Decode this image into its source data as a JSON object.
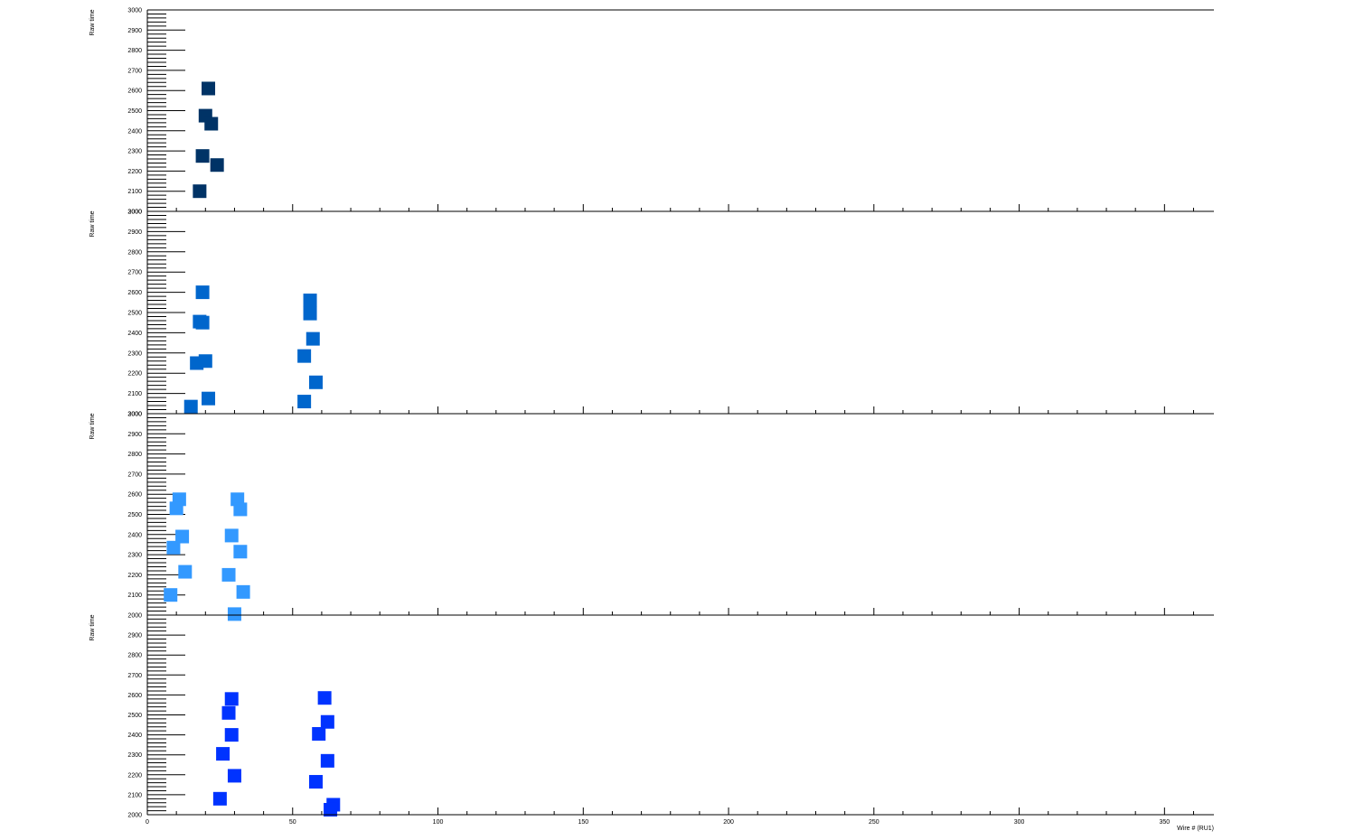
{
  "chart_data": [
    {
      "type": "scatter",
      "ylabel": "Raw time",
      "ylim": [
        2000,
        3000
      ],
      "yticks": [
        "2000",
        "2100",
        "2200",
        "2300",
        "2400",
        "2500",
        "2600",
        "2700",
        "2800",
        "2900",
        "3000"
      ],
      "marker_color": "#003366",
      "points": [
        {
          "x": 21,
          "y": 2610
        },
        {
          "x": 20,
          "y": 2475
        },
        {
          "x": 22,
          "y": 2435
        },
        {
          "x": 19,
          "y": 2275
        },
        {
          "x": 24,
          "y": 2230
        },
        {
          "x": 18,
          "y": 2100
        }
      ]
    },
    {
      "type": "scatter",
      "ylabel": "Raw time",
      "ylim": [
        2000,
        3000
      ],
      "yticks": [
        "2000",
        "2100",
        "2200",
        "2300",
        "2400",
        "2500",
        "2600",
        "2700",
        "2800",
        "2900",
        "3000"
      ],
      "marker_color": "#0066cc",
      "points": [
        {
          "x": 19,
          "y": 2600
        },
        {
          "x": 18,
          "y": 2455
        },
        {
          "x": 19,
          "y": 2450
        },
        {
          "x": 20,
          "y": 2260
        },
        {
          "x": 17,
          "y": 2250
        },
        {
          "x": 21,
          "y": 2075
        },
        {
          "x": 15,
          "y": 2035
        },
        {
          "x": 56,
          "y": 2560
        },
        {
          "x": 56,
          "y": 2495
        },
        {
          "x": 57,
          "y": 2370
        },
        {
          "x": 54,
          "y": 2285
        },
        {
          "x": 58,
          "y": 2155
        },
        {
          "x": 54,
          "y": 2060
        }
      ]
    },
    {
      "type": "scatter",
      "ylabel": "Raw time",
      "ylim": [
        2000,
        3000
      ],
      "yticks": [
        "2000",
        "2100",
        "2200",
        "2300",
        "2400",
        "2500",
        "2600",
        "2700",
        "2800",
        "2900",
        "3000"
      ],
      "marker_color": "#3399ff",
      "points": [
        {
          "x": 11,
          "y": 2575
        },
        {
          "x": 10,
          "y": 2530
        },
        {
          "x": 12,
          "y": 2390
        },
        {
          "x": 9,
          "y": 2335
        },
        {
          "x": 13,
          "y": 2215
        },
        {
          "x": 8,
          "y": 2100
        },
        {
          "x": 31,
          "y": 2575
        },
        {
          "x": 32,
          "y": 2525
        },
        {
          "x": 29,
          "y": 2395
        },
        {
          "x": 32,
          "y": 2315
        },
        {
          "x": 28,
          "y": 2200
        },
        {
          "x": 33,
          "y": 2115
        },
        {
          "x": 30,
          "y": 2005
        }
      ]
    },
    {
      "type": "scatter",
      "ylabel": "Raw time",
      "xlabel": "Wire # (RU1)",
      "xlim": [
        0,
        367
      ],
      "xticks": [
        "0",
        "50",
        "100",
        "150",
        "200",
        "250",
        "300",
        "350"
      ],
      "ylim": [
        2000,
        3000
      ],
      "yticks": [
        "2000",
        "2100",
        "2200",
        "2300",
        "2400",
        "2500",
        "2600",
        "2700",
        "2800",
        "2900"
      ],
      "marker_color": "#0033ff",
      "points": [
        {
          "x": 29,
          "y": 2580
        },
        {
          "x": 28,
          "y": 2510
        },
        {
          "x": 29,
          "y": 2400
        },
        {
          "x": 26,
          "y": 2305
        },
        {
          "x": 30,
          "y": 2195
        },
        {
          "x": 25,
          "y": 2080
        },
        {
          "x": 61,
          "y": 2585
        },
        {
          "x": 62,
          "y": 2465
        },
        {
          "x": 59,
          "y": 2405
        },
        {
          "x": 62,
          "y": 2270
        },
        {
          "x": 58,
          "y": 2165
        },
        {
          "x": 64,
          "y": 2050
        },
        {
          "x": 63,
          "y": 2025
        }
      ]
    }
  ]
}
